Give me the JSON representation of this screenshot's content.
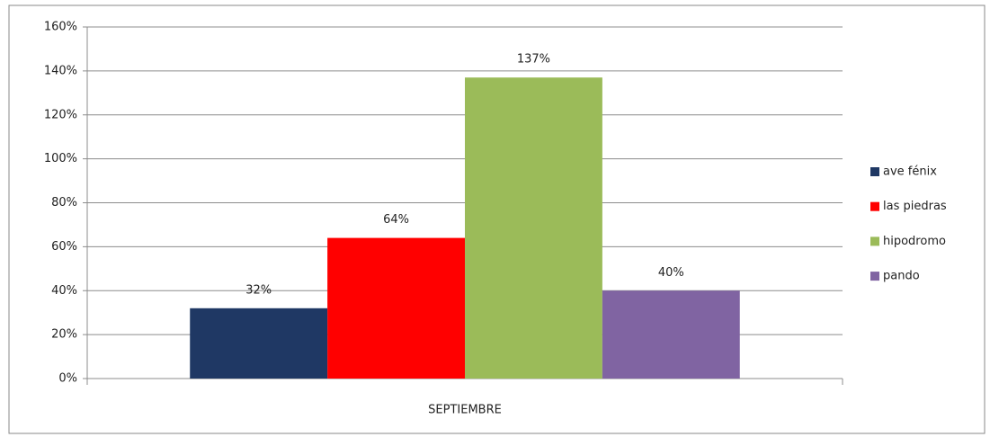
{
  "chart_data": {
    "type": "bar",
    "categories": [
      "SEPTIEMBRE"
    ],
    "series": [
      {
        "name": "ave fénix",
        "color": "#1f3864",
        "values": [
          32
        ],
        "value_labels": [
          "32%"
        ]
      },
      {
        "name": "las piedras",
        "color": "#ff0000",
        "values": [
          64
        ],
        "value_labels": [
          "64%"
        ]
      },
      {
        "name": "hipodromo",
        "color": "#9bbb59",
        "values": [
          137
        ],
        "value_labels": [
          "137%"
        ]
      },
      {
        "name": "pando",
        "color": "#8064a2",
        "values": [
          40
        ],
        "value_labels": [
          "40%"
        ]
      }
    ],
    "ylim": [
      0,
      160
    ],
    "yticks": [
      {
        "value": 0,
        "label": "0%"
      },
      {
        "value": 20,
        "label": "20%"
      },
      {
        "value": 40,
        "label": "40%"
      },
      {
        "value": 60,
        "label": "60%"
      },
      {
        "value": 80,
        "label": "80%"
      },
      {
        "value": 100,
        "label": "100%"
      },
      {
        "value": 120,
        "label": "120%"
      },
      {
        "value": 140,
        "label": "140%"
      },
      {
        "value": 160,
        "label": "160%"
      }
    ],
    "grid": true,
    "legend": "right"
  }
}
